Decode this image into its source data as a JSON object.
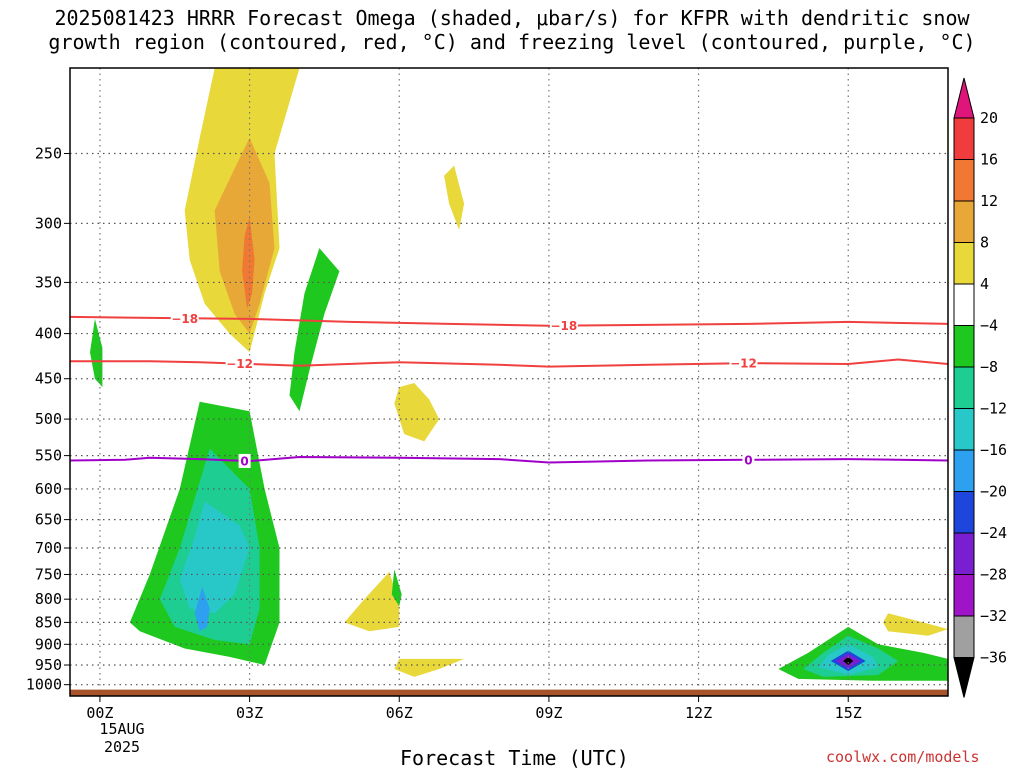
{
  "title": {
    "line1": "2025081423 HRRR Forecast Omega (shaded, μbar/s) for KFPR with dendritic snow",
    "line2": "growth region (contoured, red, °C) and freezing level (contoured, purple, °C)"
  },
  "credit": "coolwx.com/models",
  "chart_data": {
    "type": "heatmap",
    "title": "2025081423 HRRR Forecast Omega (shaded, μbar/s) for KFPR with dendritic snow growth region (contoured, red, °C) and freezing level (contoured, purple, °C)",
    "xlabel": "Forecast Time (UTC)",
    "ylabel": "",
    "x_ticks": [
      "00Z",
      "03Z",
      "06Z",
      "09Z",
      "12Z",
      "15Z"
    ],
    "x_tick_hours": [
      0,
      3,
      6,
      9,
      12,
      15
    ],
    "xlim_hours": [
      -0.6,
      17
    ],
    "date_label": [
      "15AUG",
      "2025"
    ],
    "y_scale": "log",
    "y_reversed": true,
    "y_ticks": [
      250,
      300,
      350,
      400,
      450,
      500,
      550,
      600,
      650,
      700,
      750,
      800,
      850,
      900,
      950,
      1000
    ],
    "ylim_hPa": [
      1030,
      200
    ],
    "grid": true,
    "colorbar": {
      "unit": "μbar/s",
      "labels": [
        "20",
        "16",
        "12",
        "8",
        "4",
        "-4",
        "-8",
        "-12",
        "-16",
        "-20",
        "-24",
        "-28",
        "-32",
        "-36"
      ],
      "bins": [
        {
          "range": ">20",
          "color": "#e0157c"
        },
        {
          "range": "16-20",
          "color": "#f03c3c"
        },
        {
          "range": "12-16",
          "color": "#f07832"
        },
        {
          "range": "8-12",
          "color": "#e8a838"
        },
        {
          "range": "4-8",
          "color": "#e8d83a"
        },
        {
          "range": "-4-4",
          "color": "#ffffff"
        },
        {
          "range": "-8--4",
          "color": "#1ec81e"
        },
        {
          "range": "-12--8",
          "color": "#1ecd91"
        },
        {
          "range": "-16--12",
          "color": "#28c8c8"
        },
        {
          "range": "-20--16",
          "color": "#2ea0f0"
        },
        {
          "range": "-24--20",
          "color": "#1e46dc"
        },
        {
          "range": "-28--24",
          "color": "#7a1ed2"
        },
        {
          "range": "-32--28",
          "color": "#a014c8"
        },
        {
          "range": "-36--32",
          "color": "#a0a0a0"
        },
        {
          "range": "<-36",
          "color": "#000000"
        }
      ]
    },
    "contours": [
      {
        "name": "dendritic -18",
        "label": "-18",
        "color": "#f04040",
        "points": [
          [
            -0.6,
            383
          ],
          [
            1,
            384
          ],
          [
            3,
            385
          ],
          [
            5,
            388
          ],
          [
            7,
            390
          ],
          [
            9,
            392
          ],
          [
            11,
            391
          ],
          [
            13,
            390
          ],
          [
            15,
            388
          ],
          [
            17,
            390
          ]
        ]
      },
      {
        "name": "dendritic -12",
        "label": "-12",
        "color": "#f04040",
        "points": [
          [
            -0.6,
            430
          ],
          [
            1,
            430
          ],
          [
            2,
            431
          ],
          [
            3,
            433
          ],
          [
            4,
            435
          ],
          [
            6,
            431
          ],
          [
            8,
            434
          ],
          [
            9,
            436
          ],
          [
            11,
            434
          ],
          [
            13,
            432
          ],
          [
            15,
            433
          ],
          [
            16,
            428
          ],
          [
            17,
            433
          ]
        ]
      },
      {
        "name": "freezing level 0",
        "label": "0",
        "color": "#a000c8",
        "points": [
          [
            -0.6,
            557
          ],
          [
            0.5,
            556
          ],
          [
            1,
            553
          ],
          [
            2,
            555
          ],
          [
            3,
            558
          ],
          [
            4,
            552
          ],
          [
            6,
            553
          ],
          [
            8,
            555
          ],
          [
            9,
            560
          ],
          [
            11,
            557
          ],
          [
            13,
            556
          ],
          [
            15,
            555
          ],
          [
            17,
            557
          ]
        ]
      }
    ],
    "shaded_regions": [
      {
        "bin": "4-8",
        "points": [
          [
            2.3,
            200
          ],
          [
            4,
            200
          ],
          [
            3.5,
            250
          ],
          [
            3.6,
            320
          ],
          [
            3.3,
            360
          ],
          [
            3,
            420
          ],
          [
            2.6,
            400
          ],
          [
            2.1,
            370
          ],
          [
            1.8,
            330
          ],
          [
            1.7,
            290
          ],
          [
            2,
            240
          ],
          [
            2.3,
            200
          ]
        ]
      },
      {
        "bin": "8-12",
        "points": [
          [
            3,
            240
          ],
          [
            3.4,
            270
          ],
          [
            3.5,
            320
          ],
          [
            3.2,
            370
          ],
          [
            3,
            400
          ],
          [
            2.7,
            380
          ],
          [
            2.4,
            340
          ],
          [
            2.3,
            290
          ],
          [
            2.7,
            260
          ],
          [
            3,
            240
          ]
        ]
      },
      {
        "bin": "12-16",
        "points": [
          [
            3,
            295
          ],
          [
            3.1,
            330
          ],
          [
            3.05,
            360
          ],
          [
            2.95,
            375
          ],
          [
            2.85,
            340
          ],
          [
            2.9,
            310
          ],
          [
            3,
            295
          ]
        ]
      },
      {
        "bin": "4-8",
        "points": [
          [
            7.1,
            258
          ],
          [
            7.3,
            285
          ],
          [
            7.2,
            305
          ],
          [
            7,
            285
          ],
          [
            6.9,
            265
          ],
          [
            7.1,
            258
          ]
        ]
      },
      {
        "bin": "4-8",
        "points": [
          [
            6.3,
            455
          ],
          [
            6.6,
            475
          ],
          [
            6.8,
            500
          ],
          [
            6.5,
            530
          ],
          [
            6.1,
            520
          ],
          [
            5.9,
            480
          ],
          [
            6,
            460
          ],
          [
            6.3,
            455
          ]
        ]
      },
      {
        "bin": "4-8",
        "points": [
          [
            5.8,
            745
          ],
          [
            6,
            810
          ],
          [
            6,
            860
          ],
          [
            5.4,
            870
          ],
          [
            4.9,
            850
          ],
          [
            5.3,
            800
          ],
          [
            5.8,
            745
          ]
        ]
      },
      {
        "bin": "4-8",
        "points": [
          [
            6,
            935
          ],
          [
            7.3,
            935
          ],
          [
            6.8,
            960
          ],
          [
            6.3,
            980
          ],
          [
            5.9,
            960
          ],
          [
            6,
            935
          ]
        ]
      },
      {
        "bin": "4-8",
        "points": [
          [
            15.8,
            830
          ],
          [
            16.5,
            850
          ],
          [
            17,
            865
          ],
          [
            16.6,
            880
          ],
          [
            15.8,
            870
          ],
          [
            15.7,
            850
          ],
          [
            15.8,
            830
          ]
        ]
      },
      {
        "bin": "-8--4",
        "points": [
          [
            -0.1,
            385
          ],
          [
            0.05,
            415
          ],
          [
            0.05,
            460
          ],
          [
            -0.1,
            450
          ],
          [
            -0.2,
            420
          ],
          [
            -0.1,
            385
          ]
        ]
      },
      {
        "bin": "-8--4",
        "points": [
          [
            4.4,
            320
          ],
          [
            4.8,
            340
          ],
          [
            4.5,
            380
          ],
          [
            4.2,
            440
          ],
          [
            4,
            490
          ],
          [
            3.8,
            470
          ],
          [
            3.9,
            420
          ],
          [
            4.1,
            360
          ],
          [
            4.4,
            320
          ]
        ]
      },
      {
        "bin": "-8--4",
        "points": [
          [
            2,
            478
          ],
          [
            3,
            490
          ],
          [
            3.3,
            600
          ],
          [
            3.6,
            700
          ],
          [
            3.6,
            850
          ],
          [
            3.3,
            950
          ],
          [
            2.6,
            930
          ],
          [
            1.7,
            910
          ],
          [
            0.8,
            870
          ],
          [
            0.6,
            850
          ],
          [
            1,
            750
          ],
          [
            1.6,
            600
          ],
          [
            2,
            478
          ]
        ]
      },
      {
        "bin": "-12--8",
        "points": [
          [
            2.2,
            540
          ],
          [
            3,
            600
          ],
          [
            3.2,
            700
          ],
          [
            3.2,
            820
          ],
          [
            3,
            900
          ],
          [
            2.3,
            890
          ],
          [
            1.5,
            860
          ],
          [
            1.2,
            800
          ],
          [
            1.6,
            700
          ],
          [
            2.2,
            540
          ]
        ]
      },
      {
        "bin": "-16--12",
        "points": [
          [
            2.1,
            620
          ],
          [
            2.8,
            660
          ],
          [
            3,
            700
          ],
          [
            2.7,
            790
          ],
          [
            2.3,
            830
          ],
          [
            1.8,
            820
          ],
          [
            1.6,
            760
          ],
          [
            1.9,
            680
          ],
          [
            2.1,
            620
          ]
        ]
      },
      {
        "bin": "-20--16",
        "points": [
          [
            2.05,
            775
          ],
          [
            2.2,
            820
          ],
          [
            2.15,
            860
          ],
          [
            2,
            870
          ],
          [
            1.9,
            830
          ],
          [
            2.05,
            775
          ]
        ]
      },
      {
        "bin": "-8--4",
        "points": [
          [
            5.9,
            740
          ],
          [
            6.05,
            790
          ],
          [
            6,
            815
          ],
          [
            5.85,
            790
          ],
          [
            5.9,
            740
          ]
        ]
      },
      {
        "bin": "-8--4",
        "points": [
          [
            15,
            860
          ],
          [
            15.6,
            900
          ],
          [
            16.5,
            920
          ],
          [
            17,
            935
          ],
          [
            17,
            990
          ],
          [
            15.5,
            990
          ],
          [
            14,
            985
          ],
          [
            13.6,
            960
          ],
          [
            14.2,
            920
          ],
          [
            15,
            860
          ]
        ]
      },
      {
        "bin": "-12--8",
        "points": [
          [
            15,
            880
          ],
          [
            15.6,
            910
          ],
          [
            16,
            940
          ],
          [
            15.6,
            975
          ],
          [
            14.5,
            980
          ],
          [
            14.1,
            960
          ],
          [
            14.5,
            920
          ],
          [
            15,
            880
          ]
        ]
      },
      {
        "bin": "-16--12",
        "points": [
          [
            15,
            900
          ],
          [
            15.5,
            930
          ],
          [
            15.6,
            955
          ],
          [
            15,
            975
          ],
          [
            14.4,
            955
          ],
          [
            14.6,
            925
          ],
          [
            15,
            900
          ]
        ]
      },
      {
        "bin": "-24--20",
        "points": [
          [
            15,
            915
          ],
          [
            15.35,
            940
          ],
          [
            15,
            965
          ],
          [
            14.65,
            940
          ],
          [
            15,
            915
          ]
        ]
      },
      {
        "bin": "-28--24",
        "points": [
          [
            15,
            922
          ],
          [
            15.25,
            940
          ],
          [
            15,
            958
          ],
          [
            14.75,
            940
          ],
          [
            15,
            922
          ]
        ]
      },
      {
        "bin": "<-36",
        "points": [
          [
            15,
            930
          ],
          [
            15.1,
            940
          ],
          [
            15,
            950
          ],
          [
            14.9,
            940
          ],
          [
            15,
            930
          ]
        ]
      }
    ],
    "terrain": {
      "color": "#a8542a",
      "from_hPa": 1013
    }
  }
}
